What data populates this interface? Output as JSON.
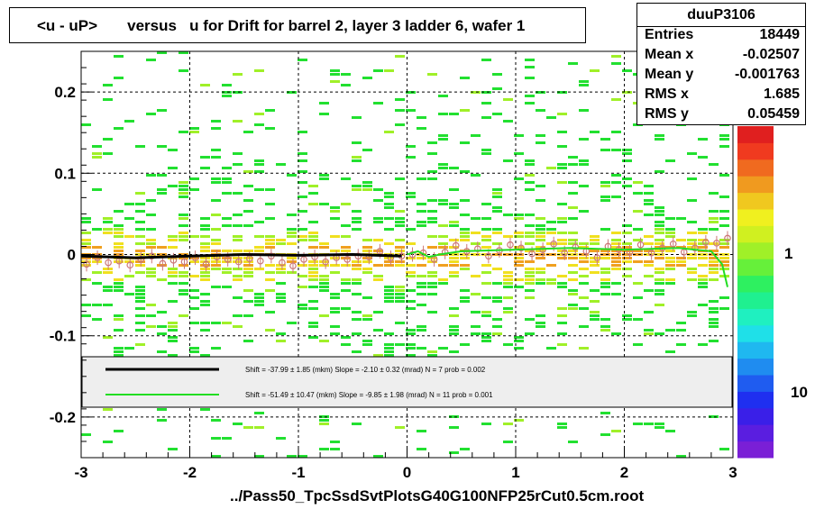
{
  "title": "<u - uP>       versus   u for Drift for barrel 2, layer 3 ladder 6, wafer 1",
  "stats": {
    "name": "duuP3106",
    "rows": [
      {
        "label": "Entries",
        "value": "18449"
      },
      {
        "label": "Mean x",
        "value": "-0.02507"
      },
      {
        "label": "Mean y",
        "value": "-0.001763"
      },
      {
        "label": "RMS x",
        "value": "1.685"
      },
      {
        "label": "RMS y",
        "value": "0.05459"
      }
    ]
  },
  "footer": "../Pass50_TpcSsdSvtPlotsG40G100NFP25rCut0.5cm.root",
  "colors": {
    "frame": "#000000",
    "fit_black": "#000000",
    "fit_green": "#22dd22",
    "legend_bg": "#eeeeee",
    "points": "#cc7777",
    "palette": [
      "#7a1fd6",
      "#5a1ee0",
      "#3a1fe8",
      "#1f2ff0",
      "#1f5cf0",
      "#1f8cf0",
      "#1fb8f0",
      "#1fe0e8",
      "#1ff0c0",
      "#1ff090",
      "#2ef060",
      "#66f03a",
      "#a0f028",
      "#d0f020",
      "#f0f01f",
      "#f0c81f",
      "#f09a1f",
      "#f06a1f",
      "#f03a1f",
      "#e01f1f"
    ]
  },
  "chart_data": {
    "type": "heatmap",
    "title": "<u - uP>       versus   u for Drift for barrel 2, layer 3 ladder 6, wafer 1",
    "xlim": [
      -3,
      3
    ],
    "ylim": [
      -0.25,
      0.25
    ],
    "x_ticks": [
      -3,
      -2,
      -1,
      0,
      1,
      2,
      3
    ],
    "x_tick_labels": [
      "-3",
      "-2",
      "-1",
      "0",
      "1",
      "2",
      "3"
    ],
    "y_ticks": [
      -0.2,
      -0.1,
      0,
      0.1,
      0.2
    ],
    "y_tick_labels": [
      "-0.2",
      "-0.1",
      "0",
      "0.1",
      "0.2"
    ],
    "grid": true,
    "colorbar": {
      "scale": "log",
      "tick_labels": [
        "1",
        "10"
      ]
    },
    "profile_points": {
      "x": [
        -2.95,
        -2.85,
        -2.75,
        -2.65,
        -2.55,
        -2.45,
        -2.35,
        -2.25,
        -2.15,
        -2.05,
        -1.95,
        -1.85,
        -1.75,
        -1.65,
        -1.55,
        -1.45,
        -1.35,
        -1.25,
        -1.15,
        -1.05,
        -0.95,
        -0.85,
        -0.75,
        -0.65,
        -0.55,
        -0.45,
        -0.35,
        -0.25,
        -0.15,
        -0.05,
        0.05,
        0.15,
        0.25,
        0.35,
        0.45,
        0.55,
        0.65,
        0.75,
        0.85,
        0.95,
        1.05,
        1.15,
        1.25,
        1.35,
        1.45,
        1.55,
        1.65,
        1.75,
        1.85,
        1.95,
        2.05,
        2.15,
        2.25,
        2.35,
        2.45,
        2.55,
        2.65,
        2.75,
        2.85,
        2.95
      ],
      "y": [
        -0.012,
        -0.004,
        -0.01,
        -0.008,
        -0.013,
        -0.006,
        -0.002,
        -0.011,
        -0.007,
        -0.009,
        -0.004,
        -0.012,
        -0.003,
        -0.006,
        -0.009,
        -0.005,
        -0.008,
        -0.002,
        -0.01,
        -0.014,
        -0.006,
        -0.003,
        -0.009,
        -0.004,
        -0.006,
        -0.002,
        -0.003,
        0.004,
        -0.004,
        -0.002,
        0.0,
        0.002,
        -0.006,
        0.003,
        0.011,
        0.004,
        0.007,
        -0.002,
        0.005,
        0.012,
        0.008,
        0.001,
        0.006,
        0.013,
        0.002,
        0.009,
        0.004,
        -0.004,
        0.01,
        0.006,
        0.003,
        0.012,
        0.002,
        0.008,
        0.013,
        0.003,
        0.008,
        0.015,
        0.014,
        0.02
      ]
    },
    "series": [
      {
        "name": "Shift =   -37.99 ± 1.85 (mkm) Slope =    -2.10 ± 0.32 (mrad)  N = 7 prob = 0.002",
        "x": [
          -3.0,
          -2.5,
          -2.0,
          -1.5,
          -1.0,
          -0.5,
          -0.05
        ],
        "y": [
          -0.002,
          -0.004,
          -0.002,
          0.0,
          -0.001,
          0.0,
          -0.002
        ]
      },
      {
        "name": "Shift =   -51.49 ± 10.47 (mkm) Slope =    -9.85 ± 1.98 (mrad)  N = 11 prob = 0.001",
        "x": [
          0.0,
          0.1,
          0.2,
          0.3,
          0.5,
          1.0,
          1.5,
          2.0,
          2.5,
          2.8,
          2.9,
          2.95
        ],
        "y": [
          0.0,
          0.004,
          -0.003,
          0.0,
          0.004,
          0.006,
          0.008,
          0.006,
          0.008,
          0.004,
          -0.012,
          -0.04
        ]
      }
    ]
  }
}
